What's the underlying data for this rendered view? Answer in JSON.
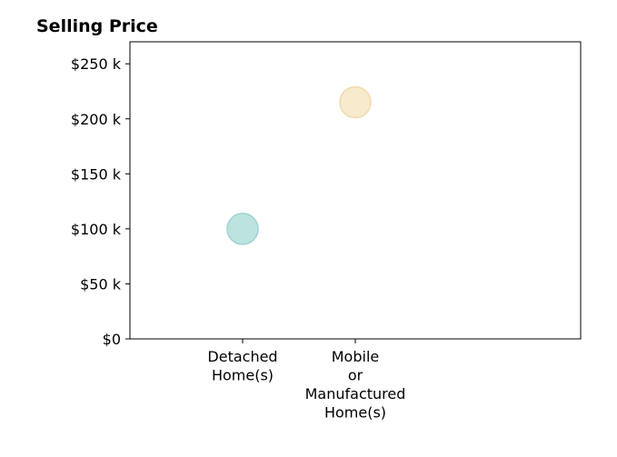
{
  "chart_data": {
    "type": "scatter",
    "title": "Selling Price",
    "xlabel": "",
    "ylabel": "",
    "categories": [
      [
        "Detached",
        "Home(s)"
      ],
      [
        "Mobile",
        "or",
        "Manufactured",
        "Home(s)"
      ]
    ],
    "values": [
      100000,
      215000
    ],
    "point_colors": [
      "#b2dedc",
      "#f7e6c4"
    ],
    "point_edge_colors": [
      "#9fd3d0",
      "#f0d9ae"
    ],
    "ylim": [
      0,
      270000
    ],
    "yticks": [
      0,
      50000,
      100000,
      150000,
      200000,
      250000
    ],
    "ytick_labels": [
      "$0",
      "$50 k",
      "$100 k",
      "$150 k",
      "$200 k",
      "$250 k"
    ],
    "grid": false,
    "legend": "none"
  }
}
